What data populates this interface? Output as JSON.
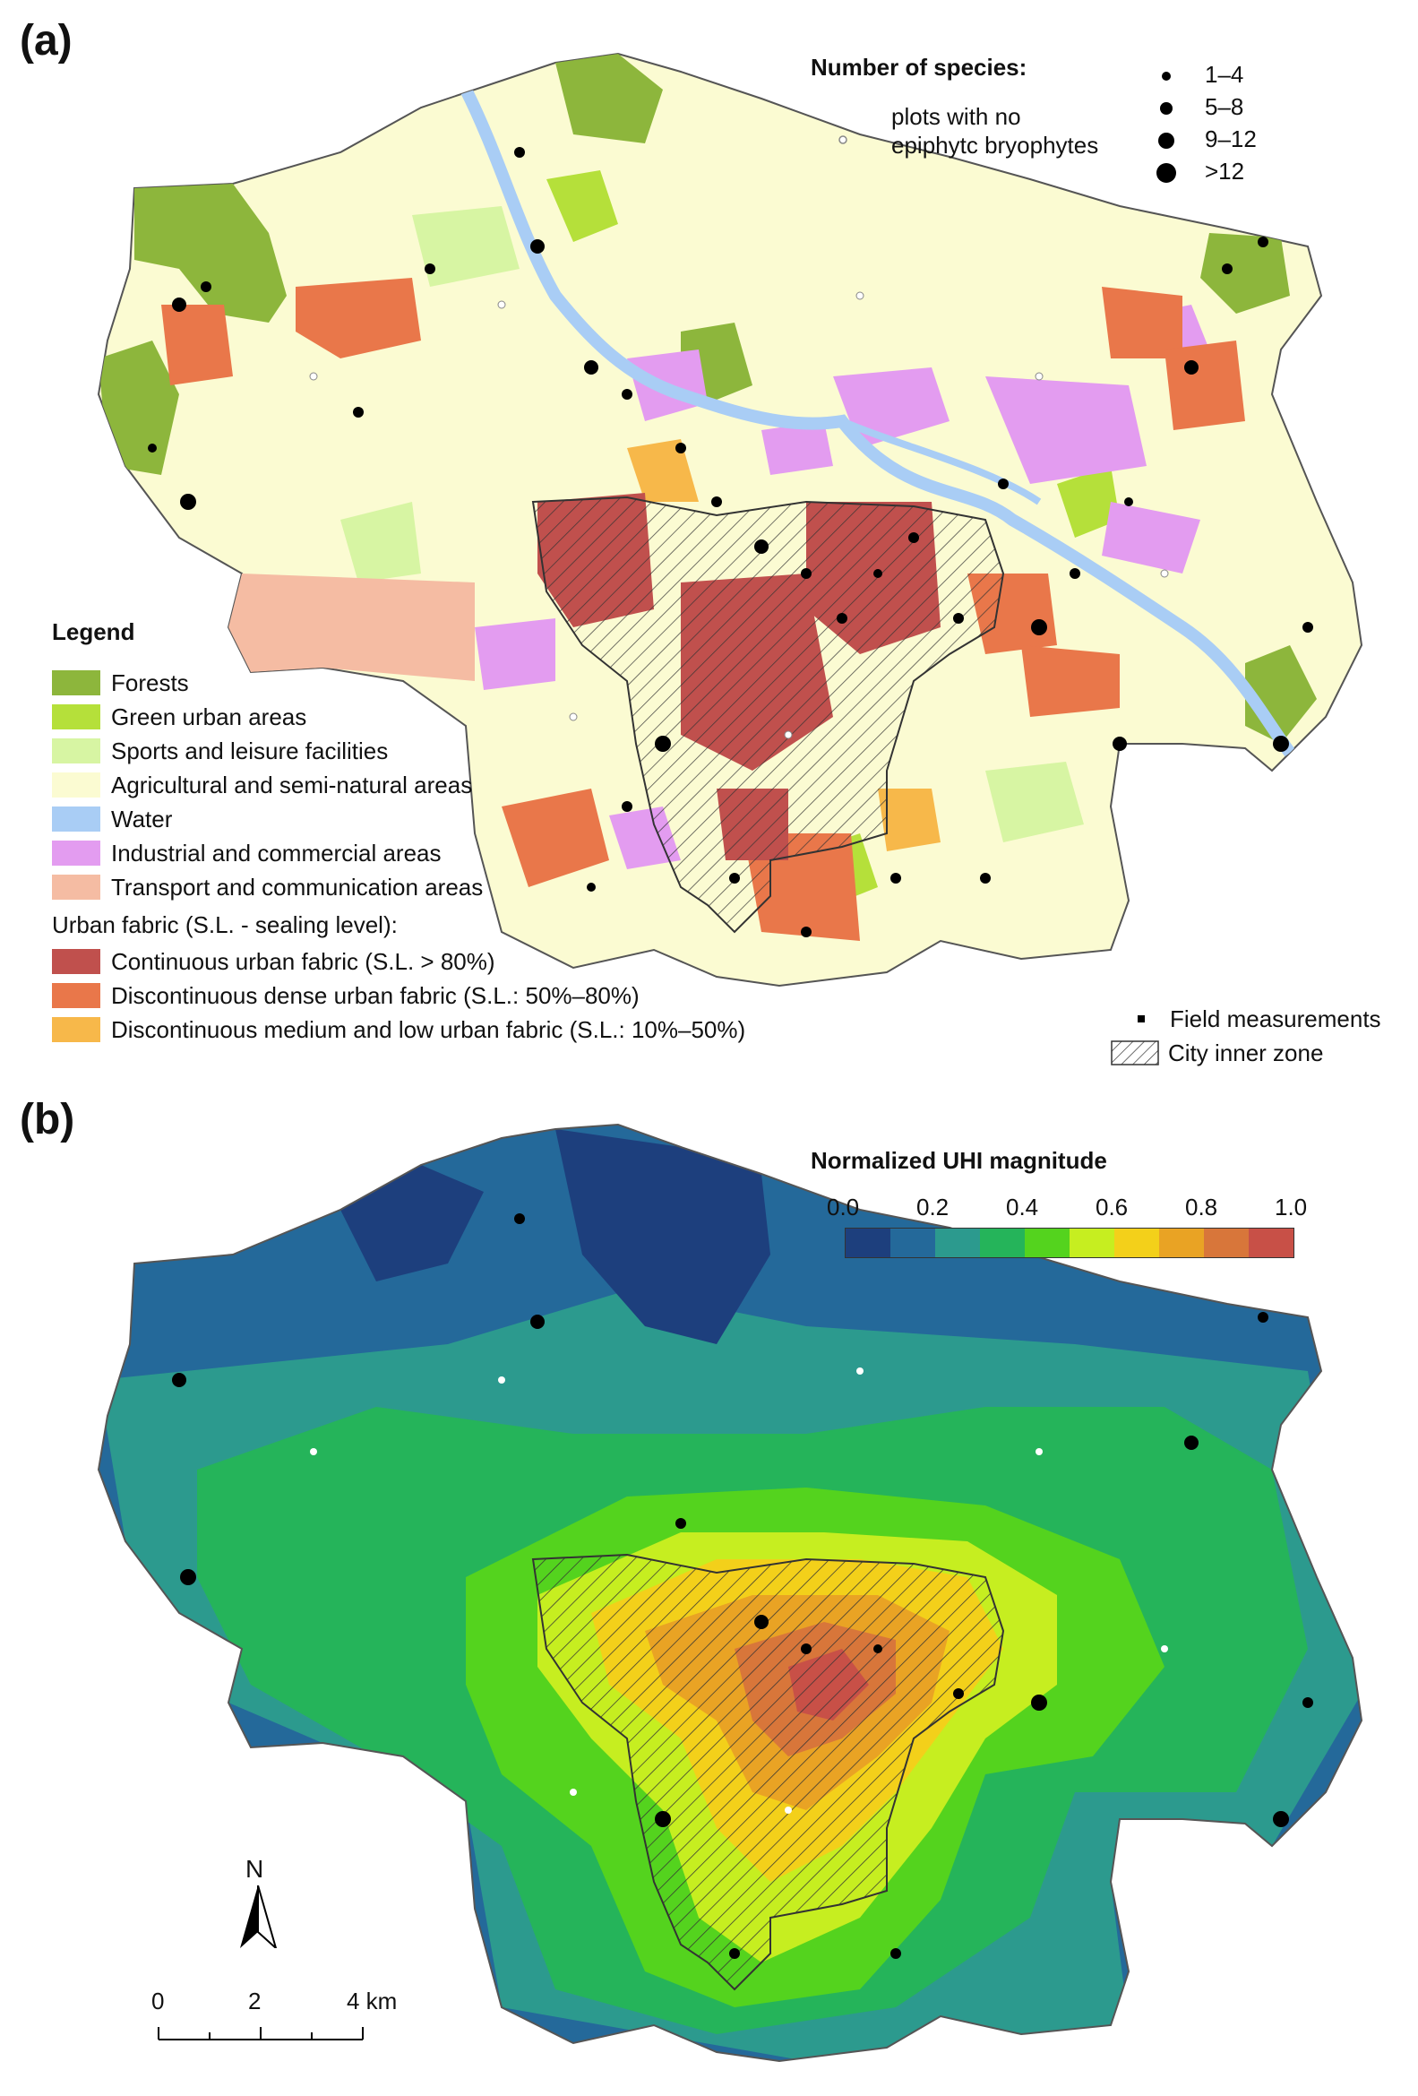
{
  "panel_a": {
    "label": "(a)",
    "legend": {
      "title": "Legend",
      "items": [
        {
          "label": "Forests",
          "color": "#8db63c"
        },
        {
          "label": "Green urban areas",
          "color": "#b5e03a"
        },
        {
          "label": "Sports and leisure facilities",
          "color": "#d7f5a3"
        },
        {
          "label": "Agricultural and semi-natural areas",
          "color": "#fbfbd2"
        },
        {
          "label": "Water",
          "color": "#a9cdf5"
        },
        {
          "label": "Industrial and commercial areas",
          "color": "#e39cf0"
        },
        {
          "label": "Transport and communication areas",
          "color": "#f5bca3"
        }
      ],
      "urban_title": "Urban fabric (S.L. - sealing level):",
      "urban_items": [
        {
          "label": "Continuous urban fabric (S.L. > 80%)",
          "color": "#c0504d"
        },
        {
          "label": "Discontinuous dense urban fabric (S.L.: 50%–80%)",
          "color": "#e9774a"
        },
        {
          "label": "Discontinuous medium and low urban fabric (S.L.: 10%–50%)",
          "color": "#f7b84a"
        }
      ]
    },
    "species_legend": {
      "title": "Number of species:",
      "no_epi_line1": "plots with no",
      "no_epi_line2": "epiphytc bryophytes",
      "classes": [
        "1–4",
        "5–8",
        "9–12",
        ">12"
      ]
    },
    "extra_legend": {
      "field": "Field measurements",
      "inner": "City inner zone"
    }
  },
  "panel_b": {
    "label": "(b)",
    "uhi_legend": {
      "title": "Normalized UHI magnitude",
      "ticks": [
        "0.0",
        "0.2",
        "0.4",
        "0.6",
        "0.8",
        "1.0"
      ],
      "colors": [
        "#1d3f7d",
        "#24699a",
        "#2c9a8e",
        "#25b45a",
        "#54d31e",
        "#c6ee20",
        "#f3d01a",
        "#e9a324",
        "#d8763a",
        "#c85047"
      ]
    },
    "north": "N",
    "scale": {
      "ticks": [
        "0",
        "2",
        "4 km"
      ]
    }
  }
}
